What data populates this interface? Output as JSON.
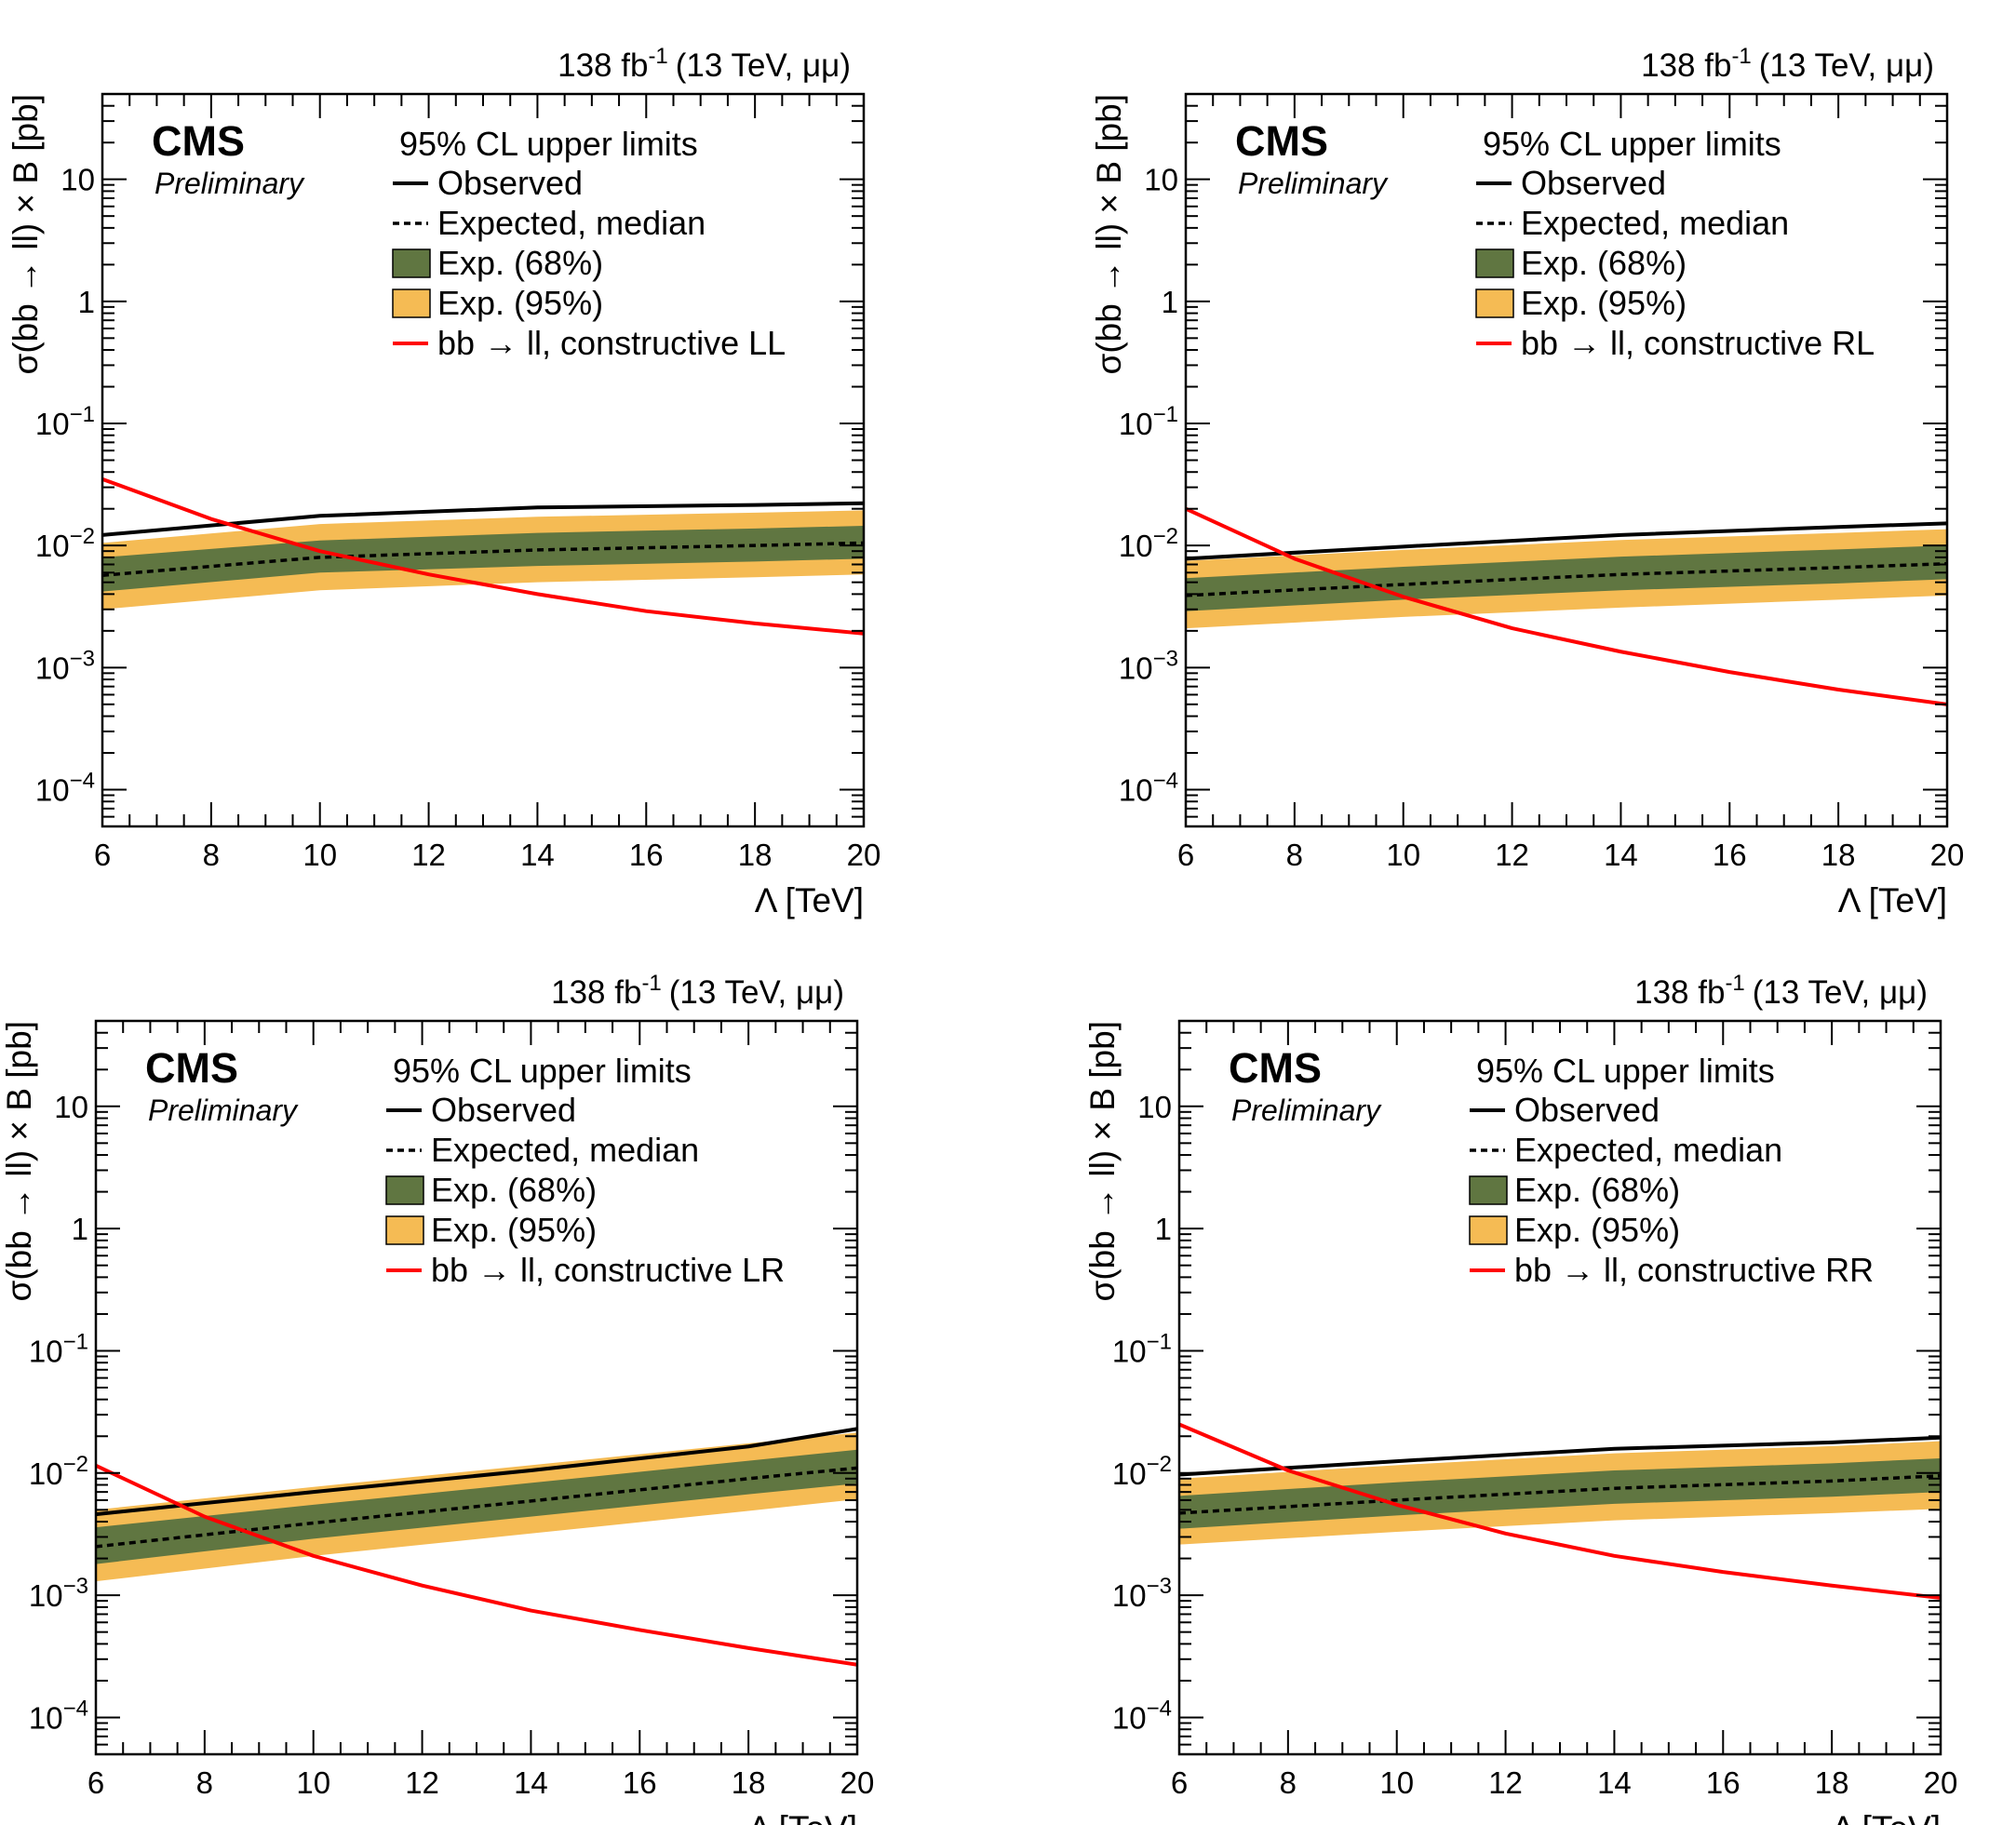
{
  "colors": {
    "observed": "#000000",
    "expected": "#000000",
    "band68": "#607641",
    "band95": "#f5bb54",
    "theory": "#ff0000",
    "axis": "#000000"
  },
  "chart_data": [
    {
      "type": "line",
      "lumi_label": "138 fb",
      "lumi_exp": "-1",
      "energy_label": "(13 TeV, μμ)",
      "cms_label": "CMS",
      "preliminary_label": "Preliminary",
      "legend_title": "95% CL upper limits",
      "legend": {
        "observed": "Observed",
        "expected": "Expected, median",
        "band68": "Exp. (68%)",
        "band95": "Exp. (95%)",
        "theory": "bb → ll, constructive LL"
      },
      "xlabel": "Λ [TeV]",
      "ylabel": "σ(bb → ll) × B [pb]",
      "xlim": [
        6,
        20
      ],
      "ylim": [
        5e-05,
        50
      ],
      "yscale": "log",
      "xticks": [
        "6",
        "8",
        "10",
        "12",
        "14",
        "16",
        "18",
        "20"
      ],
      "yticks": [
        {
          "base": "10",
          "exp": "−4",
          "value": 0.0001
        },
        {
          "base": "10",
          "exp": "−3",
          "value": 0.001
        },
        {
          "base": "10",
          "exp": "−2",
          "value": 0.01
        },
        {
          "base": "10",
          "exp": "−1",
          "value": 0.1
        },
        {
          "base": "1",
          "exp": "",
          "value": 1
        },
        {
          "base": "10",
          "exp": "",
          "value": 10
        }
      ],
      "x": [
        6,
        10,
        14,
        18,
        20
      ],
      "observed": [
        0.0122,
        0.0175,
        0.0205,
        0.0215,
        0.0222
      ],
      "expected": [
        0.0057,
        0.008,
        0.0092,
        0.01,
        0.0105
      ],
      "band68_low": [
        0.0042,
        0.006,
        0.0068,
        0.0074,
        0.0078
      ],
      "band68_high": [
        0.008,
        0.011,
        0.0127,
        0.0138,
        0.0145
      ],
      "band95_low": [
        0.003,
        0.0043,
        0.005,
        0.0055,
        0.0058
      ],
      "band95_high": [
        0.0105,
        0.015,
        0.0172,
        0.0186,
        0.0194
      ],
      "theory_x": [
        6,
        8,
        10,
        12,
        14,
        16,
        18,
        20
      ],
      "theory": [
        0.035,
        0.0165,
        0.009,
        0.0058,
        0.004,
        0.0029,
        0.0023,
        0.0019
      ]
    },
    {
      "type": "line",
      "lumi_label": "138 fb",
      "lumi_exp": "-1",
      "energy_label": "(13 TeV, μμ)",
      "cms_label": "CMS",
      "preliminary_label": "Preliminary",
      "legend_title": "95% CL upper limits",
      "legend": {
        "observed": "Observed",
        "expected": "Expected, median",
        "band68": "Exp. (68%)",
        "band95": "Exp. (95%)",
        "theory": "bb → ll, constructive RL"
      },
      "xlabel": "Λ [TeV]",
      "ylabel": "σ(bb → ll) × B [pb]",
      "xlim": [
        6,
        20
      ],
      "ylim": [
        5e-05,
        50
      ],
      "yscale": "log",
      "xticks": [
        "6",
        "8",
        "10",
        "12",
        "14",
        "16",
        "18",
        "20"
      ],
      "yticks": [
        {
          "base": "10",
          "exp": "−4",
          "value": 0.0001
        },
        {
          "base": "10",
          "exp": "−3",
          "value": 0.001
        },
        {
          "base": "10",
          "exp": "−2",
          "value": 0.01
        },
        {
          "base": "10",
          "exp": "−1",
          "value": 0.1
        },
        {
          "base": "1",
          "exp": "",
          "value": 1
        },
        {
          "base": "10",
          "exp": "",
          "value": 10
        }
      ],
      "x": [
        6,
        10,
        14,
        18,
        20
      ],
      "observed": [
        0.0078,
        0.0098,
        0.0122,
        0.0142,
        0.0152
      ],
      "expected": [
        0.0039,
        0.0048,
        0.0058,
        0.0066,
        0.0071
      ],
      "band68_low": [
        0.0029,
        0.0036,
        0.0043,
        0.0049,
        0.0053
      ],
      "band68_high": [
        0.0054,
        0.0067,
        0.0081,
        0.0093,
        0.01
      ],
      "band95_low": [
        0.0021,
        0.0026,
        0.0031,
        0.0036,
        0.0039
      ],
      "band95_high": [
        0.0075,
        0.0092,
        0.0111,
        0.0127,
        0.0136
      ],
      "theory_x": [
        6,
        8,
        10,
        12,
        14,
        16,
        18,
        20
      ],
      "theory": [
        0.02,
        0.0078,
        0.0038,
        0.0021,
        0.00135,
        0.00092,
        0.00066,
        0.0005
      ]
    },
    {
      "type": "line",
      "lumi_label": "138 fb",
      "lumi_exp": "-1",
      "energy_label": "(13 TeV, μμ)",
      "cms_label": "CMS",
      "preliminary_label": "Preliminary",
      "legend_title": "95% CL upper limits",
      "legend": {
        "observed": "Observed",
        "expected": "Expected, median",
        "band68": "Exp. (68%)",
        "band95": "Exp. (95%)",
        "theory": "bb → ll, constructive LR"
      },
      "xlabel": "Λ [TeV]",
      "ylabel": "σ(bb → ll) × B [pb]",
      "xlim": [
        6,
        20
      ],
      "ylim": [
        5e-05,
        50
      ],
      "yscale": "log",
      "xticks": [
        "6",
        "8",
        "10",
        "12",
        "14",
        "16",
        "18",
        "20"
      ],
      "yticks": [
        {
          "base": "10",
          "exp": "−4",
          "value": 0.0001
        },
        {
          "base": "10",
          "exp": "−3",
          "value": 0.001
        },
        {
          "base": "10",
          "exp": "−2",
          "value": 0.01
        },
        {
          "base": "10",
          "exp": "−1",
          "value": 0.1
        },
        {
          "base": "1",
          "exp": "",
          "value": 1
        },
        {
          "base": "10",
          "exp": "",
          "value": 10
        }
      ],
      "x": [
        6,
        10,
        14,
        18,
        20
      ],
      "observed": [
        0.0046,
        0.007,
        0.0105,
        0.0165,
        0.023
      ],
      "expected": [
        0.0025,
        0.0039,
        0.0059,
        0.009,
        0.011
      ],
      "band68_low": [
        0.0018,
        0.0029,
        0.0044,
        0.0067,
        0.0082
      ],
      "band68_high": [
        0.0036,
        0.0055,
        0.0083,
        0.0126,
        0.0155
      ],
      "band95_low": [
        0.0013,
        0.0021,
        0.0032,
        0.0049,
        0.0061
      ],
      "band95_high": [
        0.005,
        0.0077,
        0.0116,
        0.0175,
        0.0214
      ],
      "theory_x": [
        6,
        8,
        10,
        12,
        14,
        16,
        18,
        20
      ],
      "theory": [
        0.0115,
        0.0044,
        0.0021,
        0.0012,
        0.00075,
        0.00052,
        0.00037,
        0.00027
      ]
    },
    {
      "type": "line",
      "lumi_label": "138 fb",
      "lumi_exp": "-1",
      "energy_label": "(13 TeV, μμ)",
      "cms_label": "CMS",
      "preliminary_label": "Preliminary",
      "legend_title": "95% CL upper limits",
      "legend": {
        "observed": "Observed",
        "expected": "Expected, median",
        "band68": "Exp. (68%)",
        "band95": "Exp. (95%)",
        "theory": "bb → ll, constructive RR"
      },
      "xlabel": "Λ [TeV]",
      "ylabel": "σ(bb → ll) × B [pb]",
      "xlim": [
        6,
        20
      ],
      "ylim": [
        5e-05,
        50
      ],
      "yscale": "log",
      "xticks": [
        "6",
        "8",
        "10",
        "12",
        "14",
        "16",
        "18",
        "20"
      ],
      "yticks": [
        {
          "base": "10",
          "exp": "−4",
          "value": 0.0001
        },
        {
          "base": "10",
          "exp": "−3",
          "value": 0.001
        },
        {
          "base": "10",
          "exp": "−2",
          "value": 0.01
        },
        {
          "base": "10",
          "exp": "−1",
          "value": 0.1
        },
        {
          "base": "1",
          "exp": "",
          "value": 1
        },
        {
          "base": "10",
          "exp": "",
          "value": 10
        }
      ],
      "x": [
        6,
        10,
        14,
        18,
        20
      ],
      "observed": [
        0.0097,
        0.0125,
        0.0158,
        0.0178,
        0.0195
      ],
      "expected": [
        0.0047,
        0.006,
        0.0075,
        0.0086,
        0.0095
      ],
      "band68_low": [
        0.0035,
        0.0045,
        0.0056,
        0.0064,
        0.007
      ],
      "band68_high": [
        0.0065,
        0.0084,
        0.0105,
        0.012,
        0.0132
      ],
      "band95_low": [
        0.0026,
        0.0033,
        0.0041,
        0.0047,
        0.0051
      ],
      "band95_high": [
        0.009,
        0.0116,
        0.0145,
        0.0166,
        0.0182
      ],
      "theory_x": [
        6,
        8,
        10,
        12,
        14,
        16,
        18,
        20
      ],
      "theory": [
        0.025,
        0.0105,
        0.0055,
        0.0032,
        0.0021,
        0.00155,
        0.0012,
        0.00095
      ]
    }
  ]
}
